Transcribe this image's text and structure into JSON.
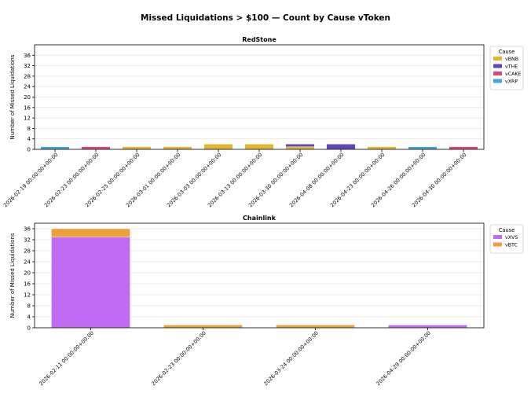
{
  "figure_title": "Missed Liquidations > $100 — Count by Cause vToken",
  "colors": {
    "vBNB": "#e3b535",
    "vTHE": "#5f47b4",
    "vCAKE": "#d94a78",
    "vXRP": "#45a5d8",
    "vXVS": "#c06bf4",
    "vBTC": "#ef9f3a"
  },
  "chart_data": [
    {
      "type": "bar",
      "stacked": true,
      "title": "RedStone",
      "ylabel": "Number of Missed Liquidations",
      "xlabel": "",
      "ylim": [
        0,
        40
      ],
      "yticks": [
        0,
        4,
        8,
        12,
        16,
        20,
        24,
        28,
        32,
        36
      ],
      "grid": "horizontal",
      "legend": {
        "title": "Cause",
        "placement": "outside-right-top",
        "entries": [
          "vBNB",
          "vTHE",
          "vCAKE",
          "vXRP"
        ]
      },
      "categories": [
        "2026-02-19 00:00:00+00:00",
        "2026-02-23 00:00:00+00:00",
        "2026-02-25 00:00:00+00:00",
        "2026-03-01 00:00:00+00:00",
        "2026-03-03 00:00:00+00:00",
        "2026-03-13 00:00:00+00:00",
        "2026-03-30 00:00:00+00:00",
        "2026-04-08 00:00:00+00:00",
        "2026-04-23 00:00:00+00:00",
        "2026-04-26 00:00:00+00:00",
        "2026-04-30 00:00:00+00:00"
      ],
      "series": [
        {
          "name": "vBNB",
          "values": [
            0,
            0,
            1,
            1,
            2,
            2,
            1,
            0,
            1,
            0,
            0
          ]
        },
        {
          "name": "vTHE",
          "values": [
            0,
            0,
            0,
            0,
            0,
            0,
            1,
            2,
            0,
            0,
            0
          ]
        },
        {
          "name": "vCAKE",
          "values": [
            0,
            1,
            0,
            0,
            0,
            0,
            0,
            0,
            0,
            0,
            1
          ]
        },
        {
          "name": "vXRP",
          "values": [
            1,
            0,
            0,
            0,
            0,
            0,
            0,
            0,
            0,
            1,
            0
          ]
        }
      ]
    },
    {
      "type": "bar",
      "stacked": true,
      "title": "Chainlink",
      "ylabel": "Number of Missed Liquidations",
      "xlabel": "",
      "ylim": [
        0,
        38
      ],
      "yticks": [
        0,
        4,
        8,
        12,
        16,
        20,
        24,
        28,
        32,
        36
      ],
      "grid": "horizontal",
      "legend": {
        "title": "Cause",
        "placement": "outside-right-top",
        "entries": [
          "vXVS",
          "vBTC"
        ]
      },
      "categories": [
        "2026-02-11 00:00:00+00:00",
        "2026-02-23 00:00:00+00:00",
        "2026-03-24 00:00:00+00:00",
        "2026-04-29 00:00:00+00:00"
      ],
      "series": [
        {
          "name": "vXVS",
          "values": [
            33,
            0,
            0,
            1
          ]
        },
        {
          "name": "vBTC",
          "values": [
            3,
            1,
            1,
            0
          ]
        }
      ]
    }
  ]
}
